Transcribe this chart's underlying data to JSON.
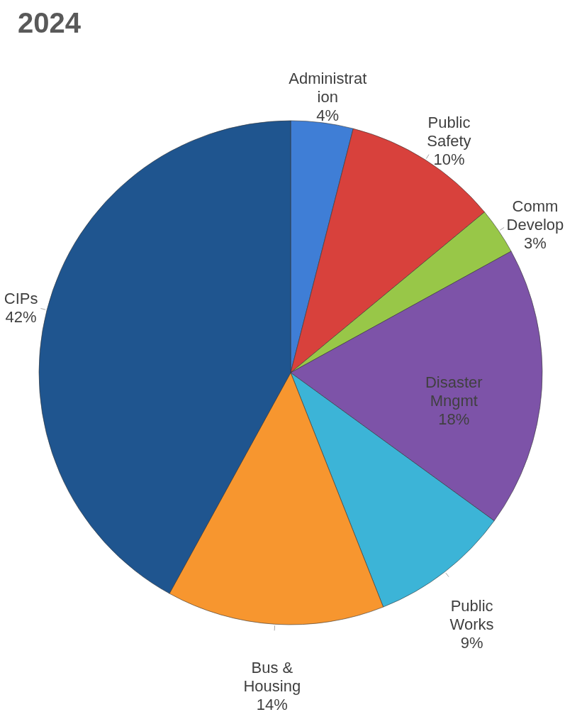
{
  "chart_data": {
    "type": "pie",
    "title": "2024",
    "categories": [
      "Administration",
      "Public Safety",
      "Comm Develop",
      "Disaster Mngmt",
      "Public Works",
      "Bus & Housing",
      "CIPs"
    ],
    "values": [
      4,
      10,
      3,
      18,
      9,
      14,
      42
    ],
    "value_labels": [
      "4%",
      "10%",
      "3%",
      "18%",
      "9%",
      "14%",
      "42%"
    ],
    "colors": [
      "#3f7ed6",
      "#d8413c",
      "#98c748",
      "#7d53a8",
      "#3cb4d7",
      "#f7962f",
      "#1f558f"
    ]
  }
}
